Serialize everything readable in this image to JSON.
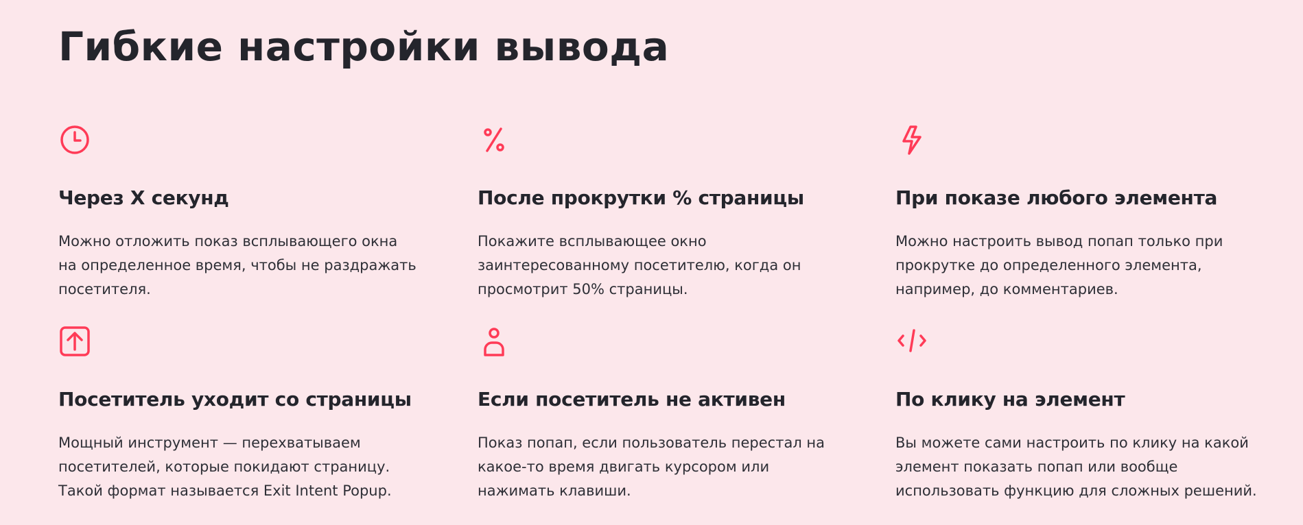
{
  "title": "Гибкие настройки вывода",
  "accent_color": "#ff3b57",
  "features": [
    {
      "icon": "clock-icon",
      "title": "Через X секунд",
      "lines": [
        "Можно отложить показ всплывающего окна",
        "на определенное время, чтобы не раздражать",
        "посетителя."
      ]
    },
    {
      "icon": "percent-icon",
      "title": "После прокрутки % страницы",
      "lines": [
        "Покажите всплывающее окно",
        "заинтересованному посетителю, когда он",
        "просмотрит 50% страницы."
      ]
    },
    {
      "icon": "lightning-icon",
      "title": "При показе любого элемента",
      "lines": [
        "Можно настроить вывод попап только при",
        "прокрутке до определенного элемента,",
        "например, до комментариев."
      ]
    },
    {
      "icon": "exit-arrow-up-icon",
      "title": "Посетитель уходит со страницы",
      "lines": [
        "Мощный инструмент — перехватываем",
        "посетителей, которые покидают страницу.",
        "Такой формат называется Exit Intent Popup."
      ]
    },
    {
      "icon": "user-icon",
      "title": "Если посетитель не активен",
      "lines": [
        "Показ попап, если пользователь перестал на",
        "какое-то время двигать курсором или",
        "нажимать клавиши."
      ]
    },
    {
      "icon": "code-icon",
      "title": "По клику на элемент",
      "lines": [
        "Вы можете сами настроить по клику на какой",
        "элемент показать попап или вообще",
        "использовать функцию для сложных решений."
      ]
    }
  ]
}
